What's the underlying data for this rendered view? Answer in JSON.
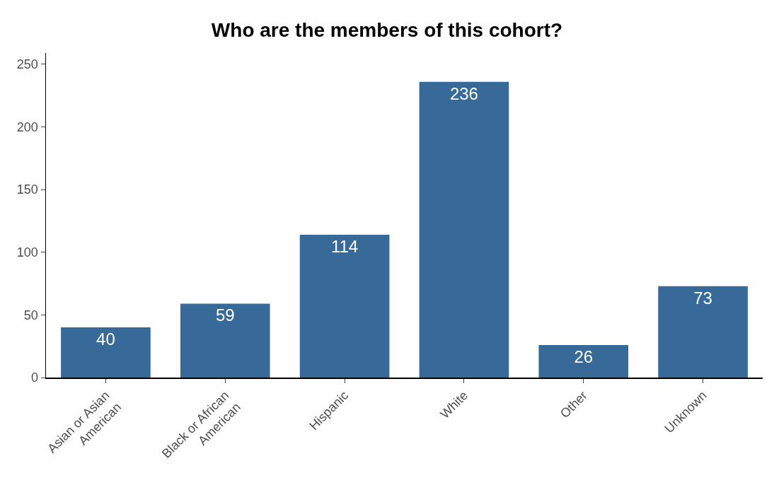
{
  "chart_data": {
    "type": "bar",
    "title": "Who are the members of this cohort?",
    "categories": [
      "Asian or Asian\nAmerican",
      "Black or African\nAmerican",
      "Hispanic",
      "White",
      "Other",
      "Unknown"
    ],
    "values": [
      40,
      59,
      114,
      236,
      26,
      73
    ],
    "color": "#376a98",
    "ylim": [
      0,
      259
    ],
    "yticks": [
      0,
      50,
      100,
      150,
      200,
      250
    ],
    "grid": false,
    "data_labels": true
  }
}
